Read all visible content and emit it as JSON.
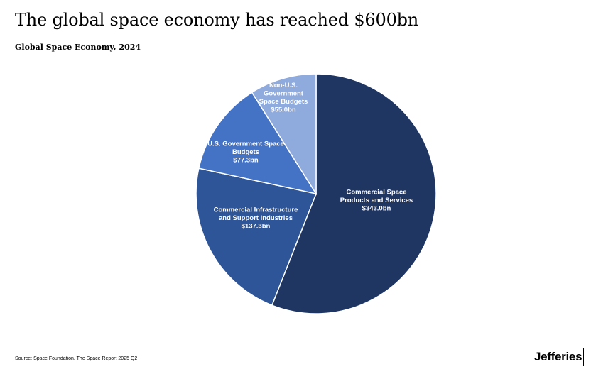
{
  "header": {
    "title": "The global space economy has reached $600bn",
    "subtitle": "Global Space Economy, 2024"
  },
  "chart_data": {
    "type": "pie",
    "title": "Global Space Economy, 2024",
    "slices": [
      {
        "label_lines": [
          "Commercial Space",
          "Products and Services"
        ],
        "value_label": "$343.0bn",
        "value": 343.0,
        "color": "#1f3562"
      },
      {
        "label_lines": [
          "Commercial Infrastructure",
          "and Support Industries"
        ],
        "value_label": "$137.3bn",
        "value": 137.3,
        "color": "#2e5597"
      },
      {
        "label_lines": [
          "U.S. Government Space",
          "Budgets"
        ],
        "value_label": "$77.3bn",
        "value": 77.3,
        "color": "#4472c4"
      },
      {
        "label_lines": [
          "Non-U.S.",
          "Government",
          "Space Budgets"
        ],
        "value_label": "$55.0bn",
        "value": 55.0,
        "color": "#8faadc"
      }
    ],
    "start_angle": "12 o'clock",
    "direction": "clockwise",
    "units": "$bn"
  },
  "footer": {
    "source": "Source: Space Foundation, The Space Report 2025 Q2",
    "brand": "Jefferies"
  }
}
